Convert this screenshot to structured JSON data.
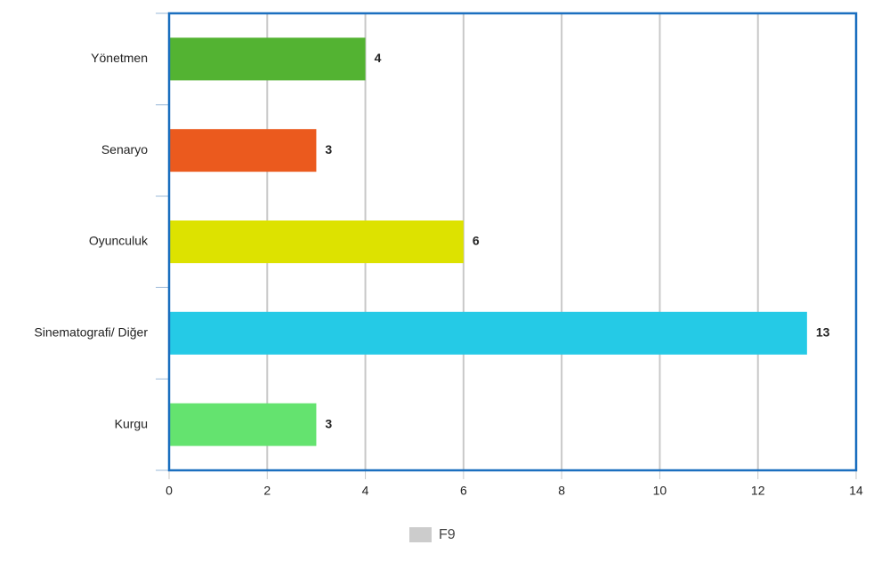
{
  "chart_data": {
    "type": "bar",
    "orientation": "horizontal",
    "categories": [
      "Yönetmen",
      "Senaryo",
      "Oyunculuk",
      "Sinematografi/ Diğer",
      "Kurgu"
    ],
    "series": [
      {
        "name": "F9",
        "color": "#cccccc",
        "values": [
          4,
          3,
          6,
          13,
          3
        ],
        "colors": [
          "#53b332",
          "#eb5a1e",
          "#dde200",
          "#25cae6",
          "#64e36f"
        ]
      }
    ],
    "xlim": [
      0,
      14
    ],
    "xticks": [
      0,
      2,
      4,
      6,
      8,
      10,
      12,
      14
    ],
    "grid": true,
    "legend": "bottom"
  }
}
